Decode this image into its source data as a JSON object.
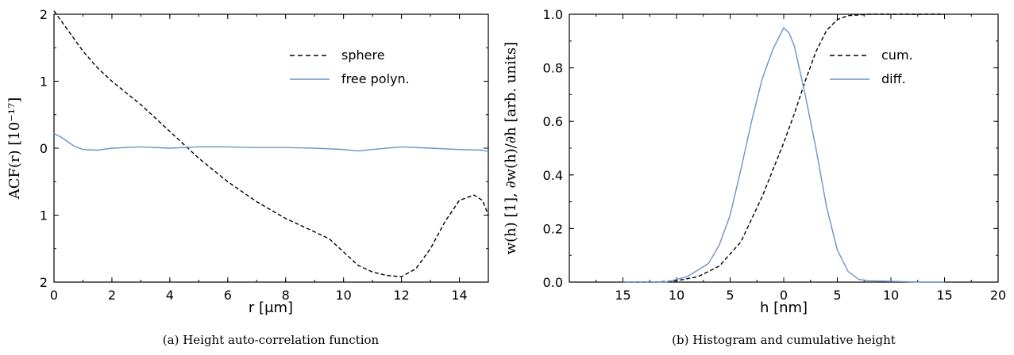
{
  "chart_data": [
    {
      "type": "line",
      "caption": "(a) Height auto-correlation function",
      "xlabel": "r [μm]",
      "ylabel": "ACF(r) [10⁻¹⁷]",
      "xlim": [
        0,
        15
      ],
      "ylim": [
        -2,
        2
      ],
      "x_ticks": [
        "0",
        "2",
        "4",
        "6",
        "8",
        "10",
        "12",
        "14"
      ],
      "y_ticks": [
        "2",
        "1",
        "0",
        "1",
        "2"
      ],
      "legend_position": "upper-right",
      "series": [
        {
          "name": "sphere",
          "style": "dashed",
          "color": "#000000",
          "points": [
            [
              0,
              2.05
            ],
            [
              0.5,
              1.75
            ],
            [
              1,
              1.45
            ],
            [
              1.5,
              1.2
            ],
            [
              2,
              1.0
            ],
            [
              3,
              0.65
            ],
            [
              4,
              0.25
            ],
            [
              4.5,
              0.05
            ],
            [
              5,
              -0.15
            ],
            [
              6,
              -0.5
            ],
            [
              7,
              -0.8
            ],
            [
              8,
              -1.05
            ],
            [
              9,
              -1.25
            ],
            [
              9.5,
              -1.35
            ],
            [
              10,
              -1.55
            ],
            [
              10.5,
              -1.75
            ],
            [
              11,
              -1.85
            ],
            [
              11.5,
              -1.9
            ],
            [
              12,
              -1.92
            ],
            [
              12.5,
              -1.8
            ],
            [
              13,
              -1.5
            ],
            [
              13.5,
              -1.1
            ],
            [
              14,
              -0.78
            ],
            [
              14.5,
              -0.7
            ],
            [
              14.8,
              -0.78
            ],
            [
              15,
              -1.0
            ]
          ]
        },
        {
          "name": "free polyn.",
          "style": "solid",
          "color": "#6c92c9",
          "points": [
            [
              0,
              0.22
            ],
            [
              0.3,
              0.15
            ],
            [
              0.7,
              0.03
            ],
            [
              1,
              -0.02
            ],
            [
              1.5,
              -0.03
            ],
            [
              2,
              0.0
            ],
            [
              3,
              0.02
            ],
            [
              4,
              0.0
            ],
            [
              5,
              0.02
            ],
            [
              6,
              0.02
            ],
            [
              7,
              0.01
            ],
            [
              8,
              0.01
            ],
            [
              9,
              0.0
            ],
            [
              10,
              -0.02
            ],
            [
              10.5,
              -0.04
            ],
            [
              11,
              -0.02
            ],
            [
              12,
              0.02
            ],
            [
              13,
              0.0
            ],
            [
              14,
              -0.02
            ],
            [
              14.8,
              -0.03
            ],
            [
              15,
              -0.05
            ]
          ]
        }
      ]
    },
    {
      "type": "line",
      "caption": "(b) Histogram and cumulative height",
      "xlabel": "h [nm]",
      "ylabel": "w(h) [1], ∂w(h)/∂h [arb. units]",
      "xlim": [
        -20,
        20
      ],
      "ylim": [
        0,
        1
      ],
      "x_ticks": [
        "15",
        "10",
        "5",
        "0",
        "5",
        "10",
        "15",
        "20"
      ],
      "y_ticks": [
        "0.0",
        "0.2",
        "0.4",
        "0.6",
        "0.8",
        "1.0"
      ],
      "legend_position": "center-right",
      "series": [
        {
          "name": "cum.",
          "style": "dashed",
          "color": "#000000",
          "points": [
            [
              -15,
              0.0
            ],
            [
              -12,
              0.0
            ],
            [
              -10,
              0.005
            ],
            [
              -8,
              0.02
            ],
            [
              -6,
              0.06
            ],
            [
              -4,
              0.15
            ],
            [
              -2,
              0.32
            ],
            [
              0,
              0.52
            ],
            [
              1,
              0.63
            ],
            [
              2,
              0.75
            ],
            [
              3,
              0.86
            ],
            [
              4,
              0.94
            ],
            [
              5,
              0.98
            ],
            [
              6,
              0.995
            ],
            [
              8,
              1.0
            ],
            [
              15,
              1.0
            ]
          ]
        },
        {
          "name": "diff.",
          "style": "solid",
          "color": "#6c92c9",
          "points": [
            [
              -15,
              0.0
            ],
            [
              -11,
              0.0
            ],
            [
              -9,
              0.02
            ],
            [
              -7,
              0.07
            ],
            [
              -6,
              0.14
            ],
            [
              -5,
              0.25
            ],
            [
              -4,
              0.42
            ],
            [
              -3,
              0.6
            ],
            [
              -2,
              0.76
            ],
            [
              -1,
              0.87
            ],
            [
              -0.5,
              0.91
            ],
            [
              0,
              0.95
            ],
            [
              0.5,
              0.93
            ],
            [
              1,
              0.88
            ],
            [
              2,
              0.7
            ],
            [
              3,
              0.5
            ],
            [
              4,
              0.28
            ],
            [
              5,
              0.12
            ],
            [
              6,
              0.04
            ],
            [
              7,
              0.01
            ],
            [
              8,
              0.005
            ],
            [
              10,
              0.003
            ],
            [
              13,
              0.0
            ],
            [
              15,
              0.0
            ]
          ]
        }
      ]
    }
  ]
}
